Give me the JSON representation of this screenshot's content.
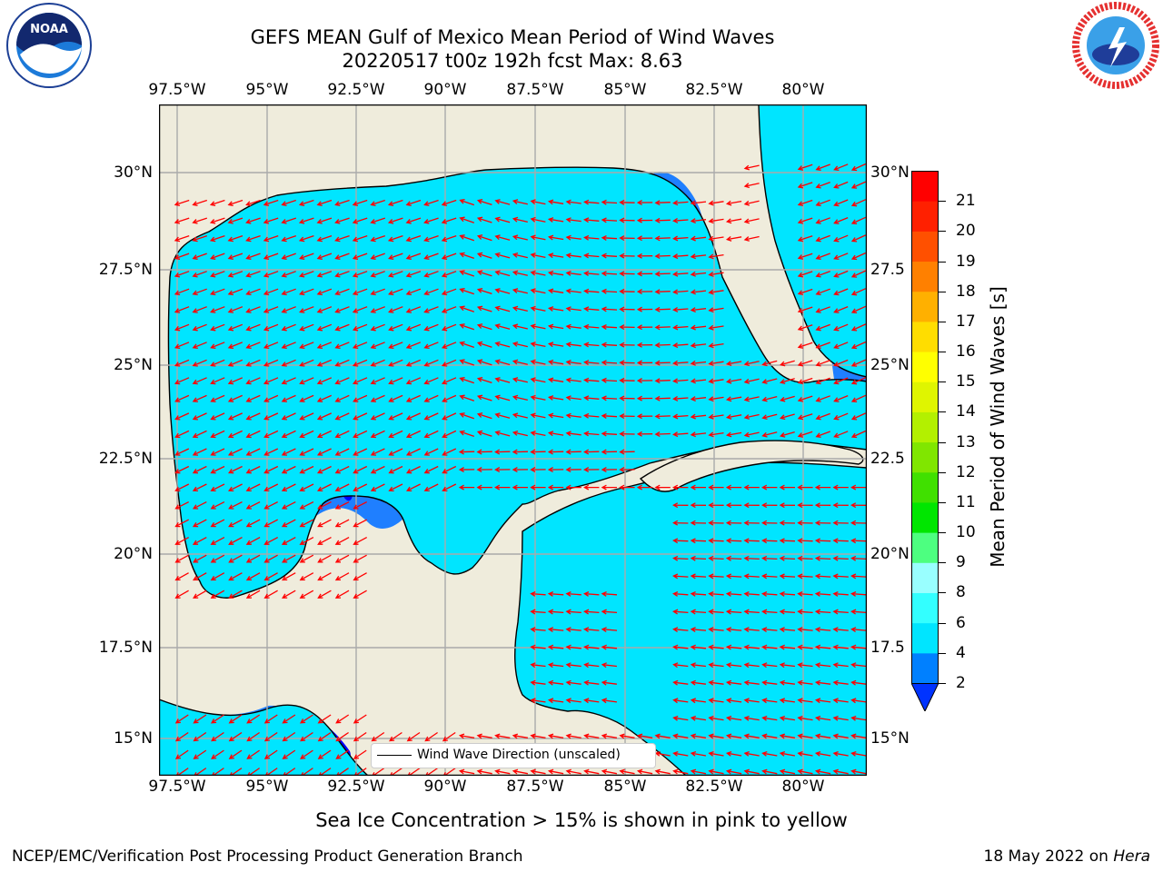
{
  "title_line1": "GEFS MEAN Gulf of Mexico Mean Period of Wind Waves",
  "title_line2": "20220517 t00z 192h fcst   Max: 8.63",
  "logos": {
    "noaa": {
      "text": "NOAA",
      "icon": "noaa-logo-icon",
      "ring_text": "NATIONAL OCEANIC AND ATMOSPHERIC ADMINISTRATION · U.S. DEPARTMENT OF COMMERCE"
    },
    "nws": {
      "icon": "nws-logo-icon",
      "ring_text": "NATIONAL WEATHER SERVICE"
    }
  },
  "lon_ticks": [
    "97.5°W",
    "95°W",
    "92.5°W",
    "90°W",
    "87.5°W",
    "85°W",
    "82.5°W",
    "80°W"
  ],
  "lat_ticks_left": [
    "30°N",
    "27.5°N",
    "25°N",
    "22.5°N",
    "20°N",
    "17.5°N",
    "15°N"
  ],
  "lat_ticks_right": [
    "30°N",
    "27.5",
    "25°N",
    "22.5",
    "20°N",
    "17.5",
    "15°N"
  ],
  "legend_label": "Wind Wave Direction (unscaled)",
  "colorbar": {
    "label": "Mean Period of Wind Waves [s]",
    "ticks": [
      "2",
      "4",
      "6",
      "8",
      "9",
      "10",
      "11",
      "12",
      "13",
      "14",
      "15",
      "16",
      "17",
      "18",
      "19",
      "20",
      "21"
    ],
    "colors": [
      "#0033ff",
      "#0080ff",
      "#00e5ff",
      "#33ffff",
      "#99ffff",
      "#4dff80",
      "#00e600",
      "#40e000",
      "#80e600",
      "#b3f000",
      "#dff500",
      "#ffff00",
      "#ffdd00",
      "#ffb000",
      "#ff8000",
      "#ff5000",
      "#ff2000",
      "#ff0000"
    ]
  },
  "map_colors": {
    "land": "#efecdc",
    "deep_blue": "#0000ff",
    "blue": "#1f7fff",
    "cyan": "#00e5ff",
    "light_cyan": "#4dfcff",
    "arrow": "#ff0000"
  },
  "caption": "Sea Ice Concentration > 15% is shown in pink to yellow",
  "footer_left": "NCEP/EMC/Verification Post Processing Product Generation Branch",
  "footer_right_prefix": "18 May 2022 on ",
  "footer_right_host": "Hera"
}
